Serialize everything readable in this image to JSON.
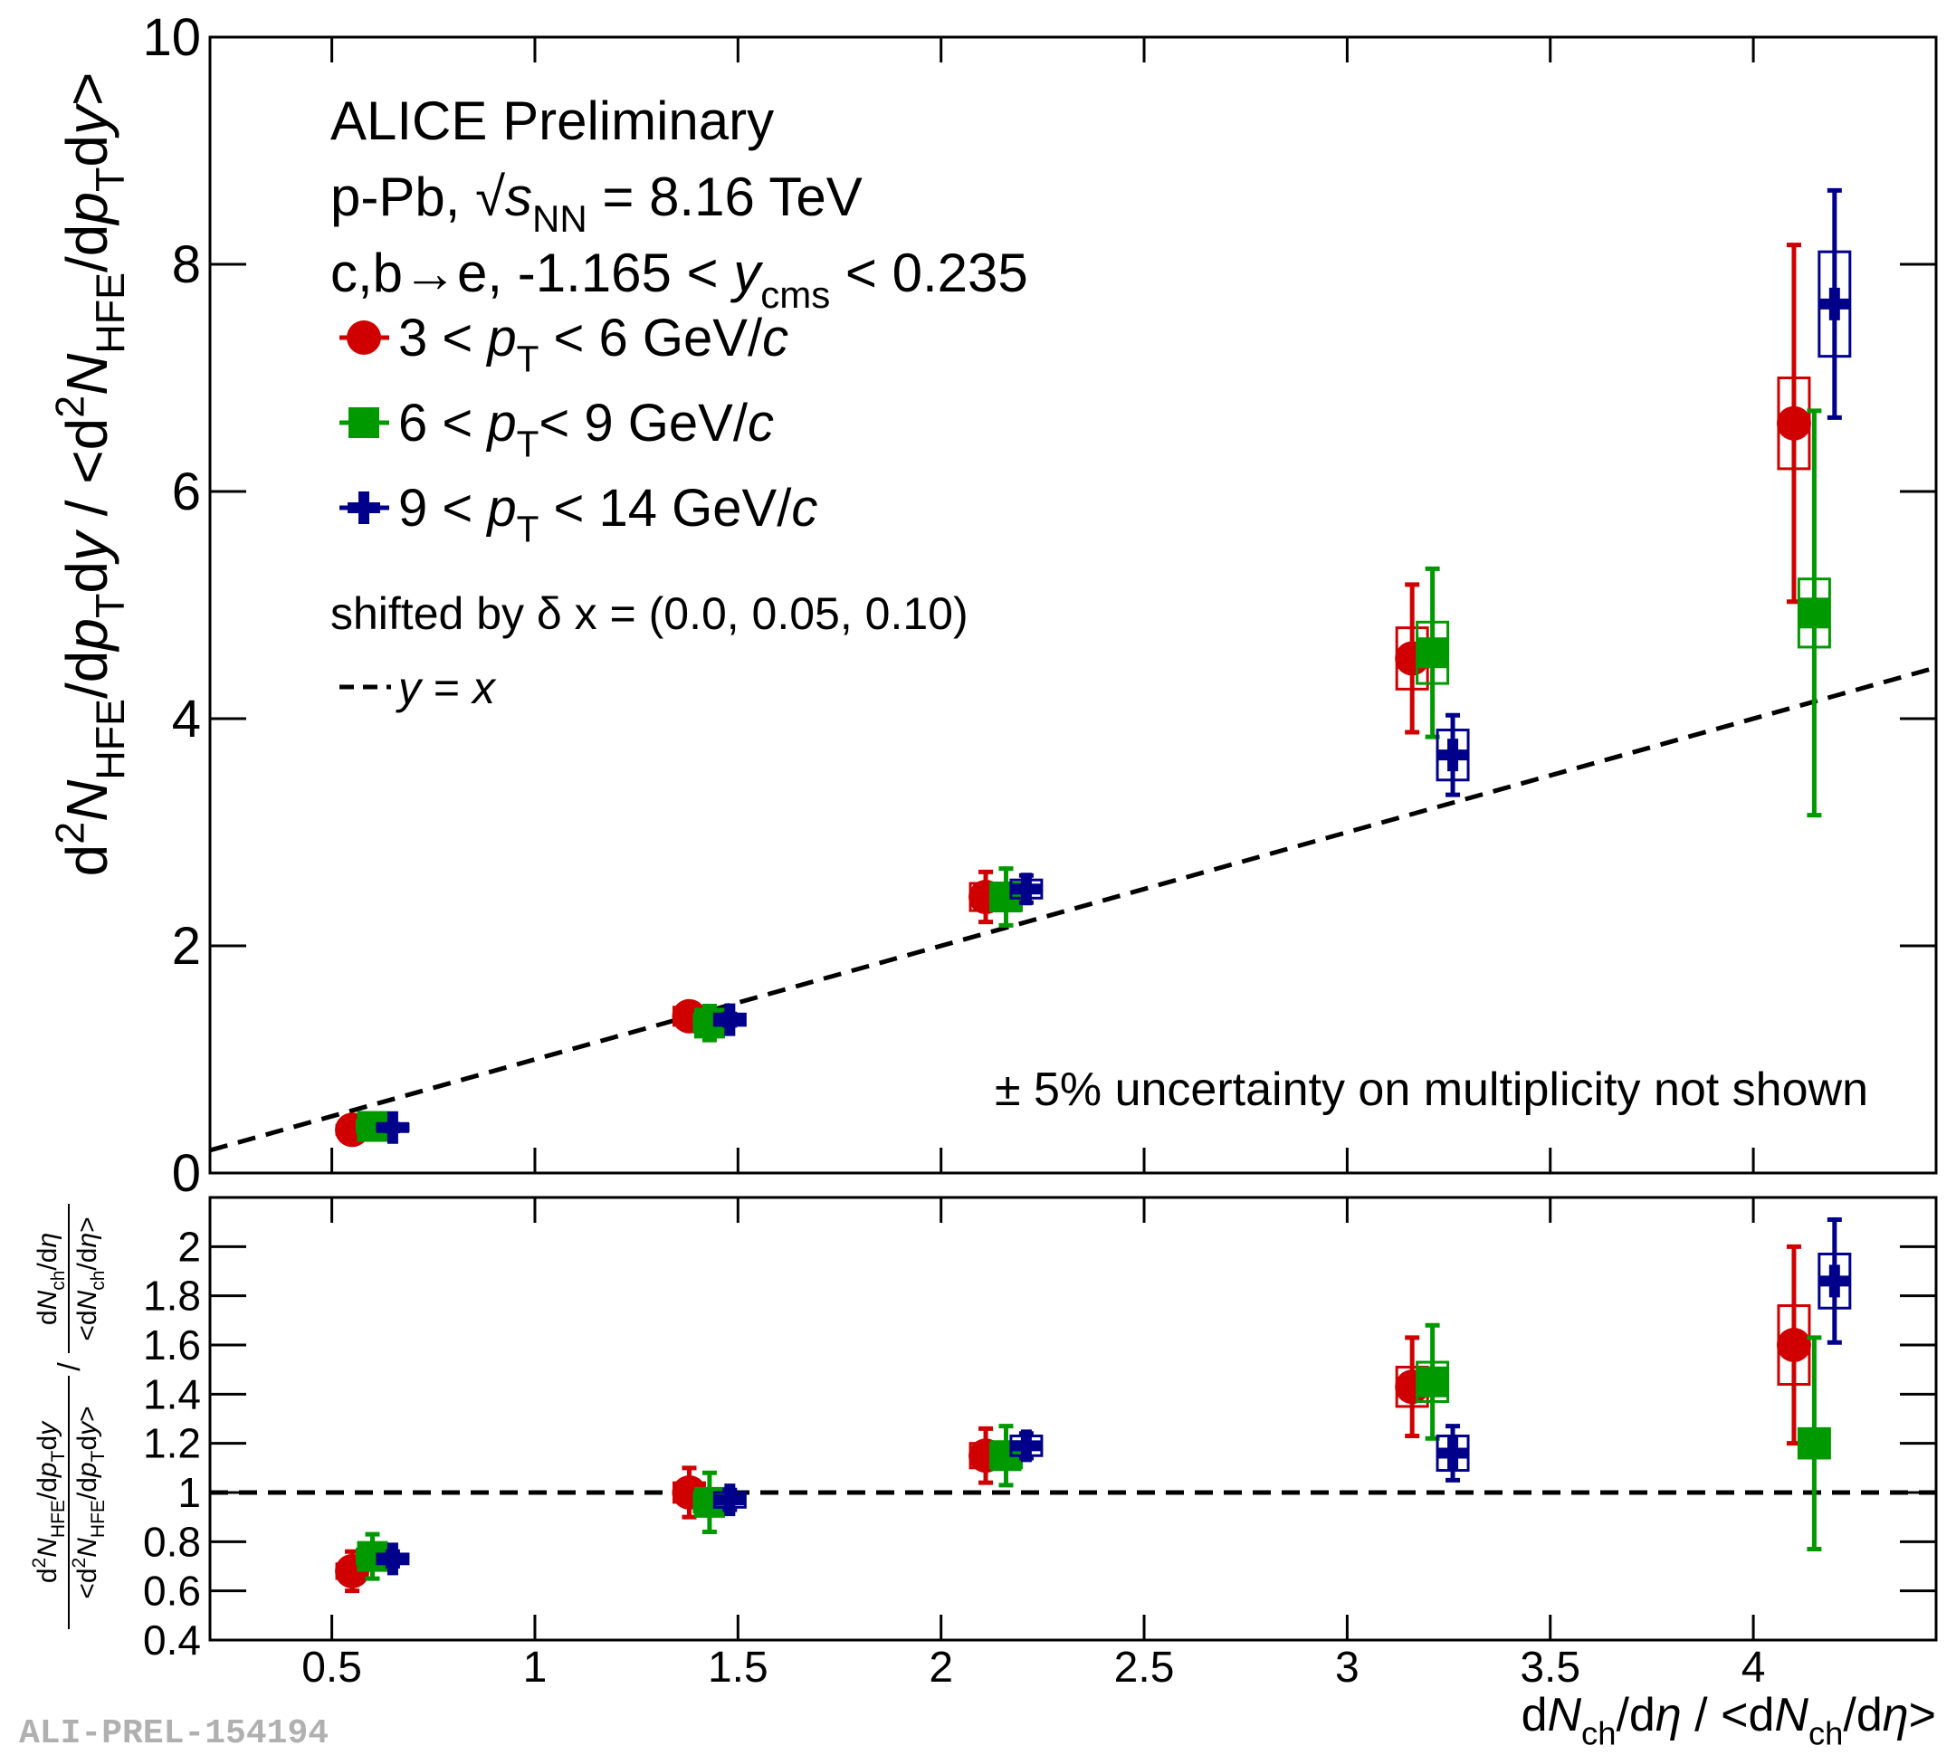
{
  "chart_data": [
    {
      "type": "scatter",
      "annotations": [
        [
          "ALICE Preliminary"
        ],
        [
          "p-Pb, √",
          {
            "it": "s"
          },
          {
            "sub": "NN"
          },
          " = 8.16 TeV"
        ],
        [
          "c,b→e, -1.165 < ",
          {
            "it": "y"
          },
          {
            "sub": "cms"
          },
          " < 0.235"
        ]
      ],
      "shift_note": [
        "shifted by δ x = (0.0, 0.05, 0.10)"
      ],
      "note": [
        "± 5% uncertainty on multiplicity not shown"
      ],
      "reference": [
        {
          "it": "y"
        },
        " = ",
        {
          "it": "x"
        }
      ],
      "ylabel": [
        "d",
        {
          "sup": "2"
        },
        {
          "it": "N"
        },
        {
          "sub": "HFE"
        },
        "/d",
        {
          "it": "p"
        },
        {
          "sub": "T"
        },
        "d",
        {
          "it": "y"
        },
        "  /  <d",
        {
          "sup": "2"
        },
        {
          "it": "N"
        },
        {
          "sub": "HFE"
        },
        "/d",
        {
          "it": "p"
        },
        {
          "sub": "T"
        },
        "d",
        {
          "it": "y"
        },
        ">"
      ],
      "xlim": [
        0.2,
        4.45
      ],
      "ylim": [
        0,
        10
      ],
      "xticks": [
        0.5,
        1,
        1.5,
        2,
        2.5,
        3,
        3.5,
        4
      ],
      "yticks": [
        0,
        2,
        4,
        6,
        8,
        10
      ],
      "series": [
        {
          "name": [
            "3 < ",
            {
              "it": "p"
            },
            {
              "sub": "T"
            },
            " < 6 GeV/",
            {
              "it": "c"
            }
          ],
          "color": "#d00000",
          "marker": "circle",
          "x": [
            0.55,
            1.38,
            2.11,
            3.16,
            4.1
          ],
          "values": [
            0.38,
            1.38,
            2.43,
            4.53,
            6.6
          ],
          "errors": [
            0.07,
            0.1,
            0.22,
            0.65,
            1.57
          ],
          "sys_errors": [
            0.04,
            0.08,
            0.12,
            0.27,
            0.4
          ]
        },
        {
          "name": [
            "6 < ",
            {
              "it": "p"
            },
            {
              "sub": "T"
            },
            "< 9 GeV/",
            {
              "it": "c"
            }
          ],
          "color": "#009900",
          "marker": "square",
          "x": [
            0.6,
            1.43,
            2.16,
            3.21,
            4.15
          ],
          "values": [
            0.41,
            1.32,
            2.43,
            4.58,
            4.93
          ],
          "errors": [
            0.08,
            0.15,
            0.25,
            0.74,
            1.78
          ],
          "sys_errors": [
            0.05,
            0.08,
            0.12,
            0.27,
            0.3
          ]
        },
        {
          "name": [
            "9 < ",
            {
              "it": "p"
            },
            {
              "sub": "T"
            },
            " < 14 GeV/",
            {
              "it": "c"
            }
          ],
          "color": "#00008b",
          "marker": "cross",
          "x": [
            0.65,
            1.48,
            2.21,
            3.26,
            4.2
          ],
          "values": [
            0.4,
            1.35,
            2.5,
            3.68,
            7.65
          ],
          "errors": [
            0.03,
            0.05,
            0.12,
            0.35,
            1.0
          ],
          "sys_errors": [
            0.03,
            0.05,
            0.08,
            0.22,
            0.46
          ]
        }
      ]
    },
    {
      "type": "scatter",
      "ylabel_num1": [
        "d",
        {
          "sup": "2"
        },
        {
          "it": "N"
        },
        {
          "sub": "HFE"
        },
        "/d",
        {
          "it": "p"
        },
        {
          "sub": "T"
        },
        "d",
        {
          "it": "y"
        }
      ],
      "ylabel_den1": [
        "<d",
        {
          "sup": "2"
        },
        {
          "it": "N"
        },
        {
          "sub": "HFE"
        },
        "/d",
        {
          "it": "p"
        },
        {
          "sub": "T"
        },
        "d",
        {
          "it": "y"
        },
        ">"
      ],
      "ylabel_sep": [
        "/"
      ],
      "ylabel_num2": [
        "d",
        {
          "it": "N"
        },
        {
          "sub": "ch"
        },
        "/d",
        {
          "it": "η"
        }
      ],
      "ylabel_den2": [
        "<d",
        {
          "it": "N"
        },
        {
          "sub": "ch"
        },
        "/d",
        {
          "it": "η"
        },
        ">"
      ],
      "xlabel": [
        "d",
        {
          "it": "N"
        },
        {
          "sub": "ch"
        },
        "/d",
        {
          "it": "η"
        },
        " / <d",
        {
          "it": "N"
        },
        {
          "sub": "ch"
        },
        "/d",
        {
          "it": "η"
        },
        ">"
      ],
      "xlim": [
        0.2,
        4.45
      ],
      "ylim": [
        0.4,
        2.2
      ],
      "xticks": [
        0.5,
        1,
        1.5,
        2,
        2.5,
        3,
        3.5,
        4
      ],
      "yticks": [
        0.4,
        0.6,
        0.8,
        1,
        1.2,
        1.4,
        1.6,
        1.8,
        2
      ],
      "reference_y": 1,
      "series": [
        {
          "color": "#d00000",
          "marker": "circle",
          "x": [
            0.55,
            1.38,
            2.11,
            3.16,
            4.1
          ],
          "values": [
            0.68,
            1.0,
            1.15,
            1.43,
            1.6
          ],
          "errors": [
            0.08,
            0.1,
            0.11,
            0.2,
            0.4
          ],
          "sys_errors": [
            0.03,
            0.04,
            0.05,
            0.08,
            0.16
          ]
        },
        {
          "color": "#009900",
          "marker": "square",
          "x": [
            0.6,
            1.43,
            2.16,
            3.21,
            4.15
          ],
          "values": [
            0.74,
            0.96,
            1.15,
            1.45,
            1.2
          ],
          "errors": [
            0.09,
            0.12,
            0.12,
            0.23,
            0.43
          ],
          "sys_errors": [
            0.03,
            0.04,
            0.05,
            0.08,
            0.06
          ]
        },
        {
          "color": "#00008b",
          "marker": "cross",
          "x": [
            0.65,
            1.48,
            2.21,
            3.26,
            4.2
          ],
          "values": [
            0.73,
            0.97,
            1.19,
            1.16,
            1.86
          ],
          "errors": [
            0.03,
            0.04,
            0.05,
            0.11,
            0.25
          ],
          "sys_errors": [
            0.02,
            0.03,
            0.04,
            0.07,
            0.11
          ]
        }
      ]
    }
  ],
  "watermark": "ALI-PREL-154194"
}
